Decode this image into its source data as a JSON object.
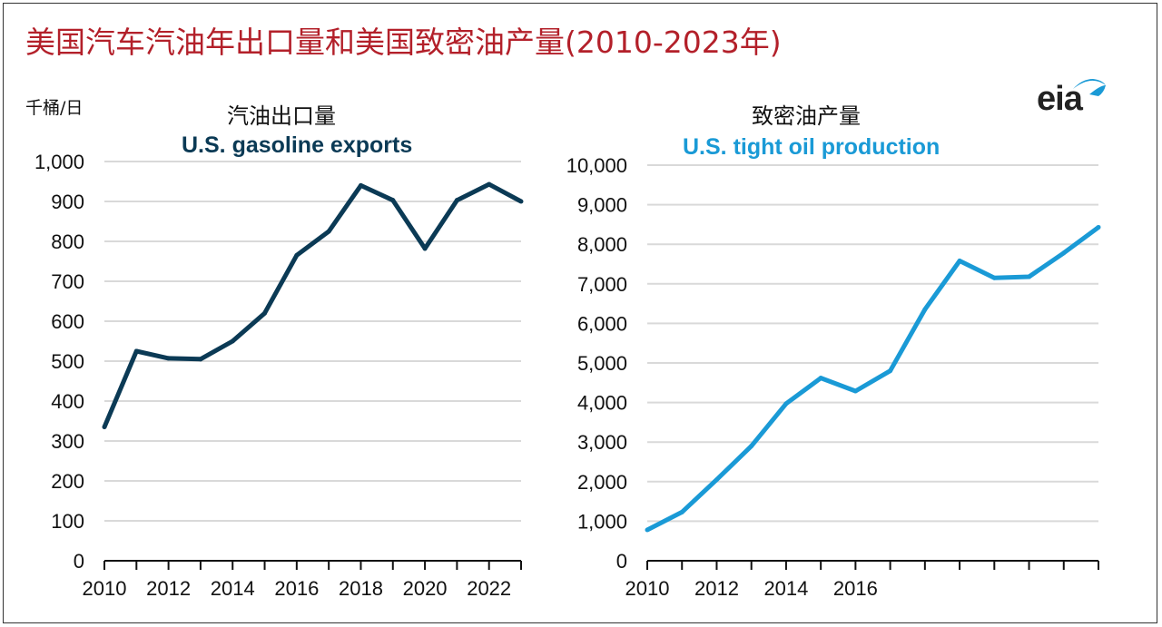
{
  "page": {
    "title": "美国汽车汽油年出口量和美国致密油产量(2010-2023年)",
    "unit": "千桶/日",
    "logo_text": "eia"
  },
  "colors": {
    "title": "#b3202a",
    "gasoline": "#0b3a55",
    "tight_oil": "#1a9ad6",
    "grid": "#d9d9d9"
  },
  "chart_data": [
    {
      "type": "line",
      "title_cn": "汽油出口量",
      "title": "U.S. gasoline exports",
      "xlabel": "",
      "ylabel": "",
      "x": [
        2010,
        2011,
        2012,
        2013,
        2014,
        2015,
        2016,
        2017,
        2018,
        2019,
        2020,
        2021,
        2022,
        2023
      ],
      "values": [
        335,
        525,
        507,
        505,
        550,
        620,
        765,
        825,
        940,
        903,
        782,
        903,
        943,
        900
      ],
      "xlim": [
        2010,
        2023
      ],
      "ylim": [
        0,
        1000
      ],
      "yticks": [
        0,
        100,
        200,
        300,
        400,
        500,
        600,
        700,
        800,
        900,
        1000
      ],
      "ytick_labels": [
        "0",
        "100",
        "200",
        "300",
        "400",
        "500",
        "600",
        "700",
        "800",
        "900",
        "1,000"
      ],
      "xticks": [
        2010,
        2012,
        2014,
        2016,
        2018,
        2020,
        2022
      ],
      "xtick_labels": [
        "2010",
        "2012",
        "2014",
        "2016",
        "2018",
        "2020",
        "2022"
      ],
      "grid": true
    },
    {
      "type": "line",
      "title_cn": "致密油产量",
      "title": "U.S. tight oil production",
      "xlabel": "",
      "ylabel": "",
      "x": [
        2010,
        2011,
        2012,
        2013,
        2014,
        2015,
        2016,
        2017,
        2018,
        2019,
        2020,
        2021,
        2022,
        2023
      ],
      "values": [
        780,
        1230,
        2050,
        2900,
        3970,
        4620,
        4290,
        4800,
        6350,
        7580,
        7150,
        7180,
        7780,
        8430
      ],
      "xlim": [
        2010,
        2023
      ],
      "ylim": [
        0,
        10000
      ],
      "yticks": [
        0,
        1000,
        2000,
        3000,
        4000,
        5000,
        6000,
        7000,
        8000,
        9000,
        10000
      ],
      "ytick_labels": [
        "0",
        "1,000",
        "2,000",
        "3,000",
        "4,000",
        "5,000",
        "6,000",
        "7,000",
        "8,000",
        "9,000",
        "10,000"
      ],
      "xticks": [
        2010,
        2012,
        2014,
        2016
      ],
      "xtick_labels": [
        "2010",
        "2012",
        "2014",
        "2016"
      ],
      "grid": true
    }
  ]
}
